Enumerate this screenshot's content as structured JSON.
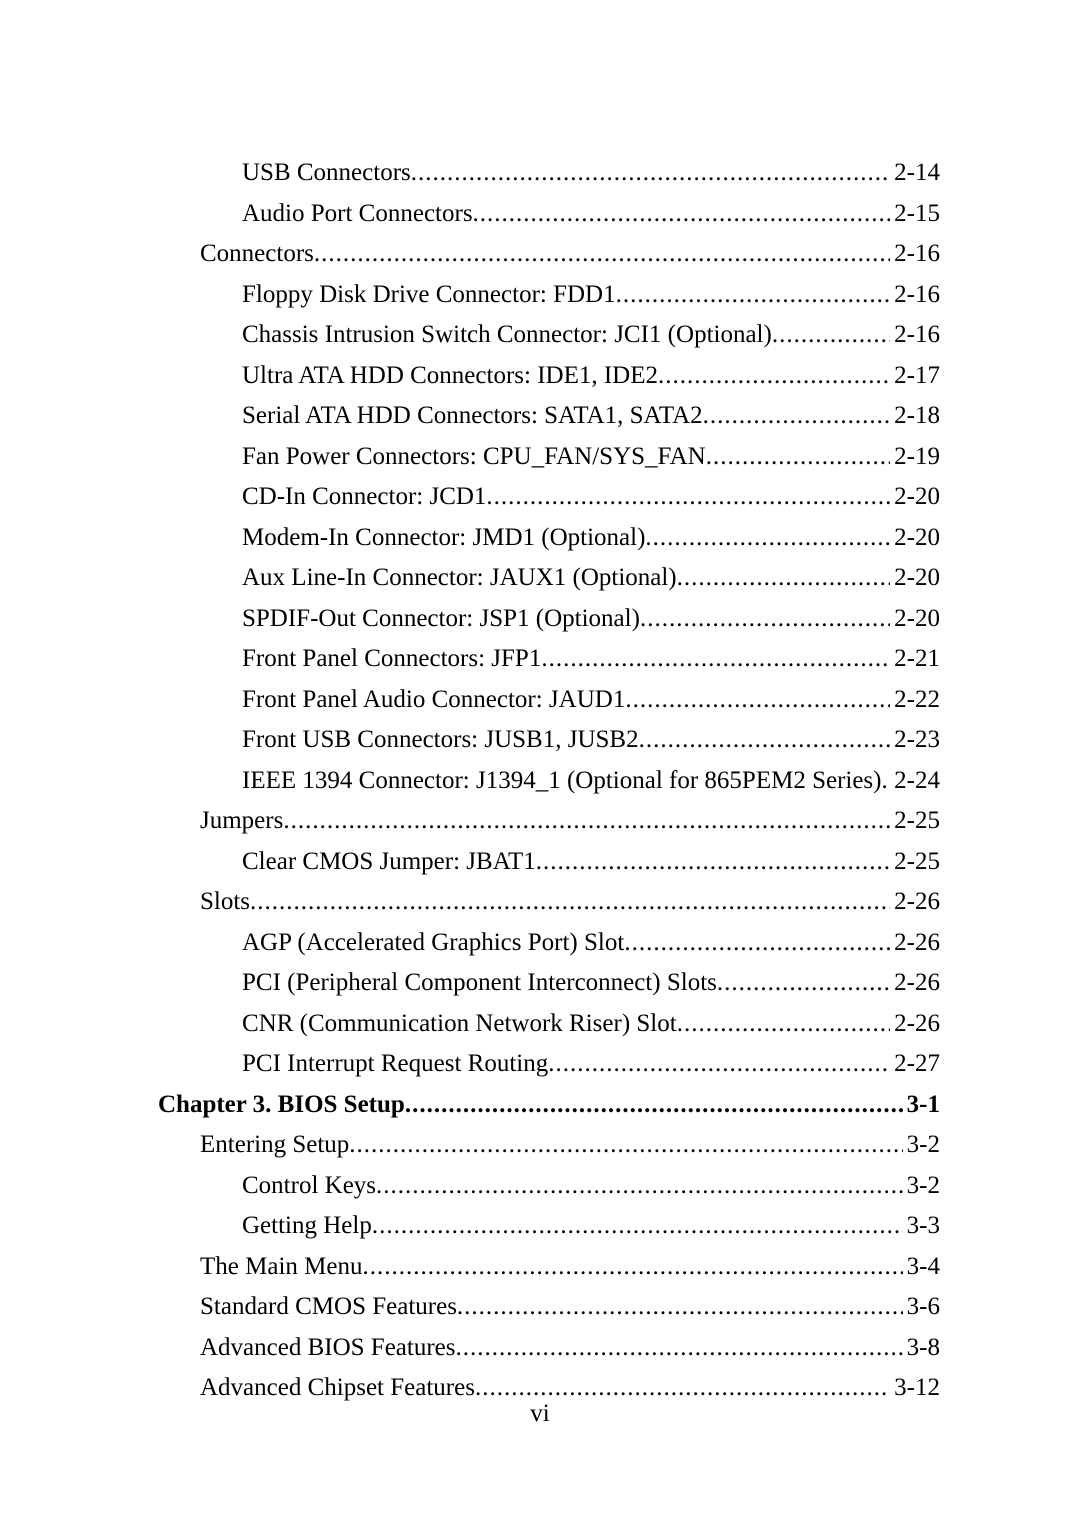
{
  "pageNumber": "vi",
  "leaderChar": ".",
  "entries": [
    {
      "level": 2,
      "title": "USB Connectors",
      "page": "2-14"
    },
    {
      "level": 2,
      "title": "Audio Port Connectors",
      "page": "2-15"
    },
    {
      "level": 1,
      "title": "Connectors",
      "page": "2-16"
    },
    {
      "level": 2,
      "title": "Floppy Disk Drive Connector: FDD1",
      "page": "2-16"
    },
    {
      "level": 2,
      "title": "Chassis Intrusion Switch Connector: JCI1 (Optional)",
      "page": "2-16"
    },
    {
      "level": 2,
      "title": "Ultra ATA HDD Connectors: IDE1, IDE2",
      "page": "2-17"
    },
    {
      "level": 2,
      "title": "Serial ATA HDD Connectors: SATA1, SATA2",
      "page": "2-18"
    },
    {
      "level": 2,
      "title": "Fan Power Connectors: CPU_FAN/SYS_FAN",
      "page": "2-19"
    },
    {
      "level": 2,
      "title": "CD-In Connector: JCD1",
      "page": "2-20"
    },
    {
      "level": 2,
      "title": "Modem-In Connector: JMD1 (Optional)",
      "page": "2-20"
    },
    {
      "level": 2,
      "title": "Aux Line-In Connector: JAUX1 (Optional)",
      "page": "2-20"
    },
    {
      "level": 2,
      "title": "SPDIF-Out Connector: JSP1 (Optional)",
      "page": "2-20"
    },
    {
      "level": 2,
      "title": "Front Panel Connectors: JFP1",
      "page": "2-21"
    },
    {
      "level": 2,
      "title": "Front Panel Audio Connector: JAUD1",
      "page": "2-22"
    },
    {
      "level": 2,
      "title": "Front USB Connectors: JUSB1, JUSB2",
      "page": "2-23"
    },
    {
      "level": 2,
      "title": "IEEE 1394 Connector: J1394_1 (Optional for 865PEM2 Series)",
      "page": "2-24"
    },
    {
      "level": 1,
      "title": "Jumpers",
      "page": "2-25"
    },
    {
      "level": 2,
      "title": "Clear CMOS Jumper: JBAT1",
      "page": "2-25"
    },
    {
      "level": 1,
      "title": "Slots",
      "page": "2-26"
    },
    {
      "level": 2,
      "title": "AGP (Accelerated Graphics Port) Slot",
      "page": "2-26"
    },
    {
      "level": 2,
      "title": "PCI (Peripheral Component Interconnect) Slots",
      "page": "2-26"
    },
    {
      "level": 2,
      "title": "CNR (Communication Network Riser) Slot",
      "page": "2-26"
    },
    {
      "level": 2,
      "title": "PCI Interrupt Request Routing",
      "page": "2-27"
    },
    {
      "level": 0,
      "title": "Chapter 3. BIOS Setup",
      "page": "3-1"
    },
    {
      "level": 1,
      "title": "Entering Setup",
      "page": "3-2"
    },
    {
      "level": 2,
      "title": "Control Keys",
      "page": "3-2"
    },
    {
      "level": 2,
      "title": "Getting Help",
      "page": "3-3"
    },
    {
      "level": 1,
      "title": "The Main Menu",
      "page": "3-4"
    },
    {
      "level": 1,
      "title": "Standard CMOS Features",
      "page": "3-6"
    },
    {
      "level": 1,
      "title": "Advanced BIOS Features",
      "page": "3-8"
    },
    {
      "level": 1,
      "title": "Advanced Chipset Features",
      "page": "3-12"
    }
  ]
}
